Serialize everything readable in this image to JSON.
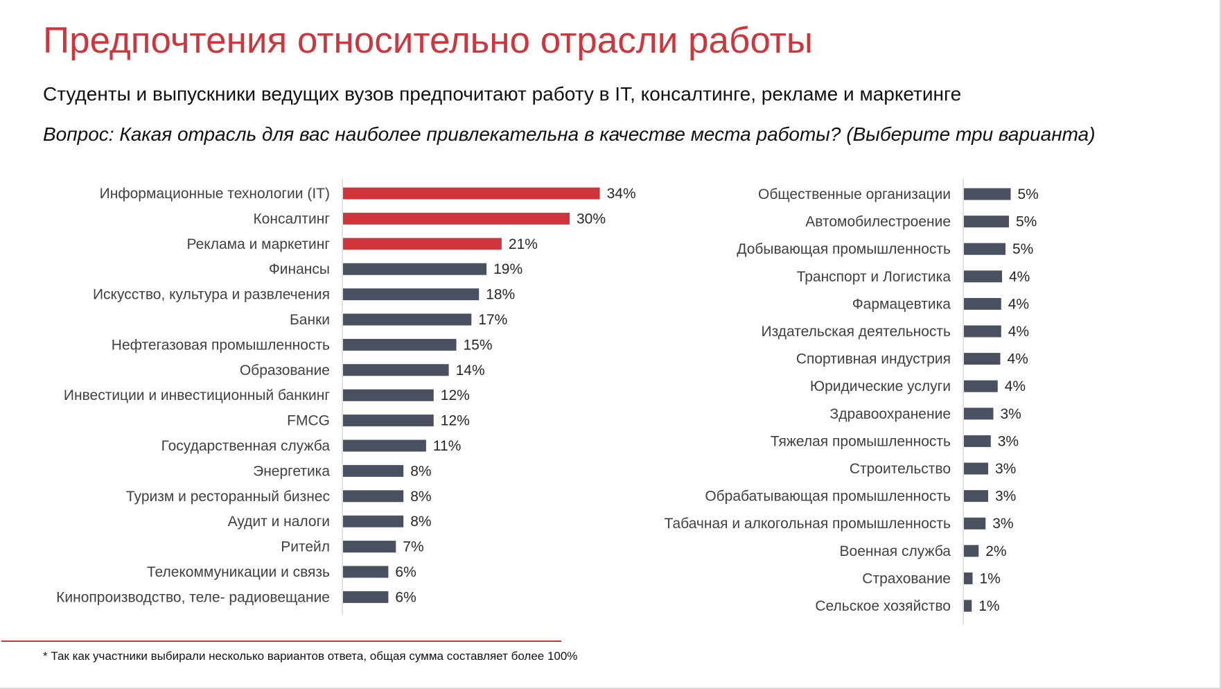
{
  "title": "Предпочтения относительно отрасли работы",
  "subtitle": "Студенты и выпускники ведущих вузов предпочитают работу в IT, консалтинге, рекламе и маркетинге",
  "question": "Вопрос: Какая отрасль для вас наиболее привлекательна в качестве места работы? (Выберите три варианта)",
  "footnote": "* Так как участники выбирали несколько вариантов ответа, общая сумма составляет более 100%",
  "colors": {
    "accent": "#d0353b",
    "bar_default": "#4b5060"
  },
  "chart_data": [
    {
      "type": "bar",
      "orientation": "horizontal",
      "categories": [
        "Информационные технологии (IT)",
        "Консалтинг",
        "Реклама и маркетинг",
        "Финансы",
        "Искусство, культура и развлечения",
        "Банки",
        "Нефтегазовая промышленность",
        "Образование",
        "Инвестиции и инвестиционный банкинг",
        "FMCG",
        "Государственная служба",
        "Энергетика",
        "Туризм и ресторанный бизнес",
        "Аудит и налоги",
        "Ритейл",
        "Телекоммуникации и связь",
        "Кинопроизводство, теле- радиовещание"
      ],
      "values": [
        34,
        30,
        21,
        19,
        18,
        17,
        15,
        14,
        12,
        12,
        11,
        8,
        8,
        8,
        7,
        6,
        6
      ],
      "value_labels": [
        "34%",
        "30%",
        "21%",
        "19%",
        "18%",
        "17%",
        "15%",
        "14%",
        "12%",
        "12%",
        "11%",
        "8%",
        "8%",
        "8%",
        "7%",
        "6%",
        "6%"
      ],
      "highlighted": [
        true,
        true,
        true,
        false,
        false,
        false,
        false,
        false,
        false,
        false,
        false,
        false,
        false,
        false,
        false,
        false,
        false
      ],
      "unit": "%"
    },
    {
      "type": "bar",
      "orientation": "horizontal",
      "categories": [
        "Общественные организации",
        "Автомобилестроение",
        "Добывающая промышленность",
        "Транспорт и Логистика",
        "Фармацевтика",
        "Издательская деятельность",
        "Спортивная индустрия",
        "Юридические услуги",
        "Здравоохранение",
        "Тяжелая промышленность",
        "Строительство",
        "Обрабатывающая промышленность",
        "Табачная и алкогольная промышленность",
        "Военная служба",
        "Страхование",
        "Сельское хозяйство"
      ],
      "values": [
        5.4,
        5.2,
        4.8,
        4.4,
        4.3,
        4.3,
        4.2,
        3.9,
        3.4,
        3.1,
        2.8,
        2.8,
        2.5,
        1.7,
        1.0,
        0.9
      ],
      "value_labels": [
        "5%",
        "5%",
        "5%",
        "4%",
        "4%",
        "4%",
        "4%",
        "4%",
        "3%",
        "3%",
        "3%",
        "3%",
        "3%",
        "2%",
        "1%",
        "1%"
      ],
      "highlighted": [
        false,
        false,
        false,
        false,
        false,
        false,
        false,
        false,
        false,
        false,
        false,
        false,
        false,
        false,
        false,
        false
      ],
      "unit": "%"
    }
  ]
}
